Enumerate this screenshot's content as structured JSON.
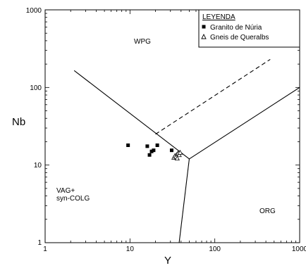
{
  "chart_data": {
    "type": "scatter",
    "xlabel": "Y",
    "ylabel": "Nb",
    "xscale": "log",
    "yscale": "log",
    "xlim": [
      1,
      1000
    ],
    "ylim": [
      1,
      1000
    ],
    "x_tick_labels": [
      "1",
      "10",
      "100",
      "1000"
    ],
    "y_tick_labels": [
      "1",
      "10",
      "100",
      "1000"
    ],
    "legend": {
      "title": "LEYENDA",
      "placement": "top-right",
      "entries": [
        {
          "label": "Granito de Núria",
          "marker": "filled-square"
        },
        {
          "label": "Gneis de Queralbs",
          "marker": "open-triangle"
        }
      ]
    },
    "field_labels": [
      {
        "text": "WPG",
        "x": 19,
        "y": 400
      },
      {
        "text": "VAG+",
        "x": 1.7,
        "y": 5.7
      },
      {
        "text": "syn-COLG",
        "x": 1.7,
        "y": 4.5
      },
      {
        "text": "ORG",
        "x": 190,
        "y": 3.6
      }
    ],
    "boundaries": [
      {
        "style": "solid",
        "points": [
          [
            2.2,
            165
          ],
          [
            50,
            12
          ]
        ]
      },
      {
        "style": "solid",
        "points": [
          [
            50,
            12
          ],
          [
            1000,
            100
          ]
        ]
      },
      {
        "style": "solid",
        "points": [
          [
            50,
            12
          ],
          [
            38,
            1
          ]
        ]
      },
      {
        "style": "dashed",
        "points": [
          [
            20,
            25
          ],
          [
            450,
            230
          ]
        ]
      }
    ],
    "series": [
      {
        "name": "Granito de Núria",
        "marker": "filled-square",
        "points": [
          [
            9.5,
            18
          ],
          [
            16,
            17.5
          ],
          [
            17,
            13.5
          ],
          [
            18,
            15
          ],
          [
            19,
            15.5
          ],
          [
            21,
            18
          ],
          [
            31,
            15.5
          ]
        ]
      },
      {
        "name": "Gneis de Queralbs",
        "marker": "open-triangle",
        "points": [
          [
            33,
            12.5
          ],
          [
            34,
            13.2
          ],
          [
            35,
            12.8
          ],
          [
            36,
            13.8
          ],
          [
            37,
            14.2
          ],
          [
            38,
            13.5
          ],
          [
            39,
            14.5
          ],
          [
            36,
            12.2
          ]
        ]
      }
    ]
  }
}
